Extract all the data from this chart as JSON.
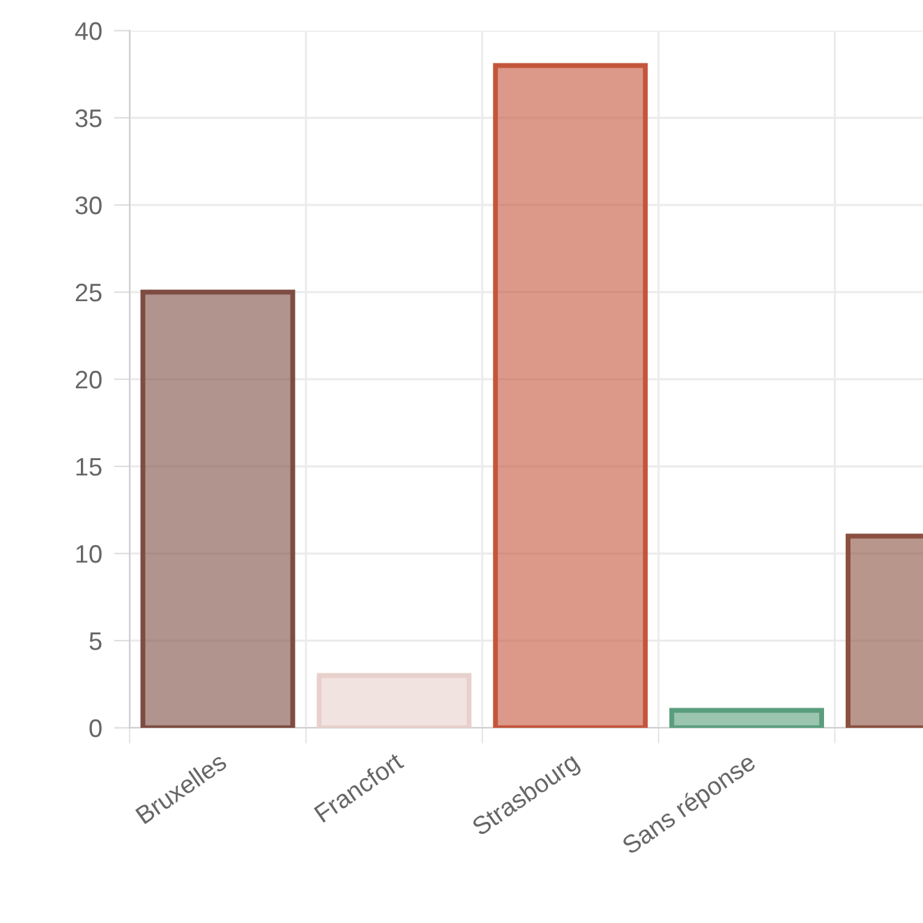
{
  "chart_data": {
    "type": "bar",
    "categories": [
      "Bruxelles",
      "Francfort",
      "Strasbourg",
      "Sans réponse",
      null
    ],
    "values": [
      25,
      3,
      38,
      1,
      11
    ],
    "colors": [
      "#7e4c42",
      "#e8d0cc",
      "#c4553b",
      "#5a9e7c",
      "#8b5040"
    ],
    "ylim": [
      0,
      40
    ],
    "yticks": [
      0,
      5,
      10,
      15,
      20,
      25,
      30,
      35,
      40
    ],
    "grid": true
  }
}
